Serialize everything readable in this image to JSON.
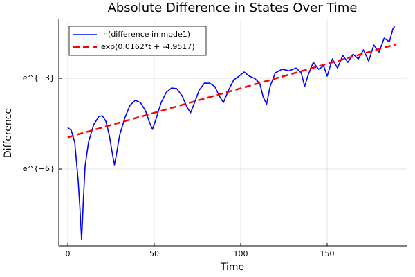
{
  "chart_data": {
    "type": "line",
    "title": "Absolute Difference in States Over Time",
    "x_label": "Time",
    "y_label": "Difference",
    "log_scale_y": "e",
    "grid": true,
    "legend": "top-left",
    "xlim": [
      -5.2,
      196
    ],
    "xticks": [
      0,
      50,
      100,
      150
    ],
    "ylim": [
      0.000195,
      0.35
    ],
    "yticks": [
      {
        "value": 0.049787,
        "label": "e^{−3}"
      },
      {
        "value": 0.0024788,
        "label": "e^{−6}"
      }
    ],
    "series": [
      {
        "name": "ln(difference in mode1)",
        "color": "#0000ff",
        "style": "solid",
        "x": [
          0,
          2,
          4,
          6,
          7,
          8,
          9,
          10,
          12,
          15,
          18,
          20,
          22,
          24,
          26,
          27,
          28,
          30,
          33,
          36,
          39,
          42,
          45,
          47,
          49,
          51,
          54,
          57,
          60,
          63,
          66,
          69,
          71,
          73,
          76,
          79,
          82,
          85,
          88,
          90,
          93,
          96,
          99,
          102,
          105,
          108,
          111,
          113,
          115,
          117,
          120,
          124,
          128,
          132,
          135,
          137,
          139,
          142,
          145,
          148,
          150,
          153,
          156,
          159,
          162,
          165,
          168,
          171,
          174,
          177,
          180,
          183,
          186,
          188,
          189
        ],
        "values": [
          0.009755,
          0.008916,
          0.006036,
          0.001712,
          0.0006892,
          0.0002388,
          0.0008674,
          0.002712,
          0.006036,
          0.01078,
          0.01412,
          0.01441,
          0.01203,
          0.007598,
          0.003849,
          0.002851,
          0.003849,
          0.007598,
          0.01343,
          0.02045,
          0.02399,
          0.02237,
          0.01691,
          0.01203,
          0.009187,
          0.01291,
          0.02237,
          0.03143,
          0.03615,
          0.03544,
          0.02816,
          0.01906,
          0.01592,
          0.02128,
          0.03371,
          0.04242,
          0.04242,
          0.03801,
          0.02678,
          0.02237,
          0.03371,
          0.04736,
          0.0534,
          0.06142,
          0.0534,
          0.04979,
          0.04242,
          0.02678,
          0.02128,
          0.03801,
          0.05961,
          0.06721,
          0.06393,
          0.06995,
          0.05961,
          0.03801,
          0.05558,
          0.08458,
          0.06721,
          0.07502,
          0.0534,
          0.09442,
          0.06995,
          0.1065,
          0.08458,
          0.1108,
          0.09442,
          0.1275,
          0.08804,
          0.1496,
          0.1188,
          0.1882,
          0.167,
          0.2541,
          0.278
        ]
      },
      {
        "name": "exp(0.0162*t + -4.9517)",
        "color": "#ff0000",
        "style": "dashed",
        "x": [
          0,
          190
        ],
        "values": [
          0.007077,
          0.1536
        ]
      }
    ]
  }
}
